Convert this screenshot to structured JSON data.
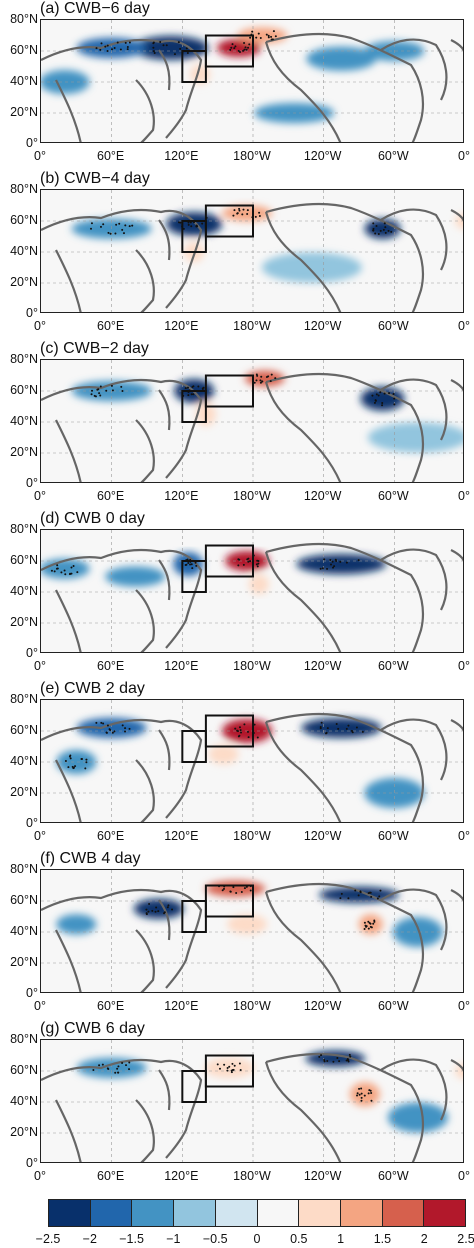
{
  "figure": {
    "panels": [
      {
        "label": "(a) CWB−6  day"
      },
      {
        "label": "(b) CWB−4  day"
      },
      {
        "label": "(c) CWB−2  day"
      },
      {
        "label": "(d) CWB 0  day"
      },
      {
        "label": "(e) CWB 2  day"
      },
      {
        "label": "(f) CWB 4  day"
      },
      {
        "label": "(g) CWB 6  day"
      }
    ],
    "lat_ticks": [
      "80°N",
      "60°N",
      "40°N",
      "20°N",
      "0°"
    ],
    "lon_ticks": [
      "0°",
      "60°E",
      "120°E",
      "180°W",
      "120°W",
      "60°W",
      "0°"
    ],
    "colorbar": {
      "ticks": [
        "−2.5",
        "−2",
        "−1.5",
        "−1",
        "−0.5",
        "0",
        "0.5",
        "1",
        "1.5",
        "2",
        "2.5"
      ],
      "colors": [
        "#08306b",
        "#2166ac",
        "#4393c3",
        "#92c5de",
        "#d1e5f0",
        "#f7f7f7",
        "#fddbc7",
        "#f4a582",
        "#d6604d",
        "#b2182b"
      ]
    }
  }
}
